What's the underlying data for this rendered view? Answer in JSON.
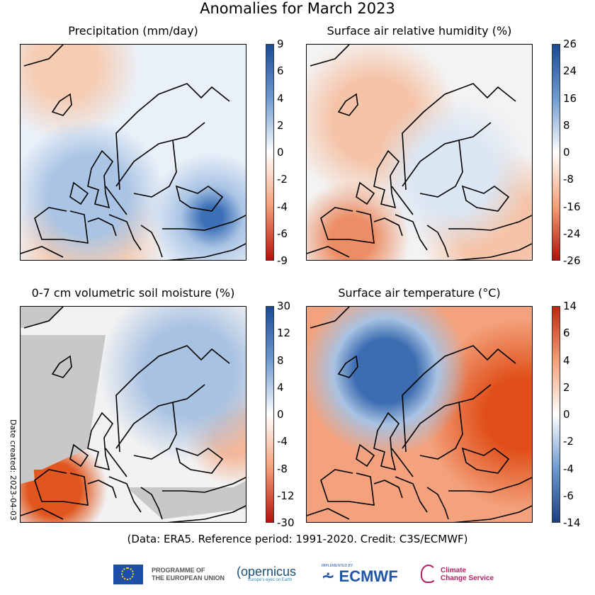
{
  "title": "Anomalies for March 2023",
  "credit": "(Data: ERA5.  Reference period: 1991-2020.  Credit: C3S/ECMWF)",
  "date_created": "Date created: 2023-04-03",
  "panels": [
    {
      "title": "Precipitation (mm/day)",
      "ticks": [
        "9",
        "6",
        "4",
        "2",
        "0",
        "-2",
        "-4",
        "-6",
        "-9"
      ],
      "colormap": "red-white-blue",
      "colors": [
        "#3b6fb6",
        "#a9c4e4",
        "#eaf0f8",
        "#f6ccb2",
        "#ea7a4c"
      ],
      "land_mask": false
    },
    {
      "title": "Surface air relative humidity (%)",
      "ticks": [
        "26",
        "24",
        "16",
        "8",
        "0",
        "-8",
        "-16",
        "-24",
        "-26"
      ],
      "colormap": "red-white-blue",
      "colors": [
        "#8fb1da",
        "#dbe6f3",
        "#f3f3f3",
        "#f5c4a8",
        "#ec8d65"
      ],
      "land_mask": false
    },
    {
      "title": "0-7 cm volumetric soil moisture (%)",
      "ticks": [
        "30",
        "12",
        "8",
        "4",
        "0",
        "-4",
        "-8",
        "-12",
        "-30"
      ],
      "colormap": "red-white-blue",
      "colors": [
        "#a8c2e2",
        "#dae5f2",
        "#f2f2f2",
        "#f3b89b",
        "#e0561e"
      ],
      "land_mask": true
    },
    {
      "title": "Surface air temperature (°C)",
      "ticks": [
        "14",
        "6",
        "4",
        "2",
        "0",
        "-2",
        "-4",
        "-6",
        "-14"
      ],
      "colormap": "blue-white-red",
      "colors": [
        "#3b6db0",
        "#a8c2e2",
        "#f4f4f4",
        "#f3a27d",
        "#e04f19"
      ],
      "land_mask": false
    }
  ],
  "logos": {
    "eu": "PROGRAMME OF THE EUROPEAN UNION",
    "eu_line1": "PROGRAMME OF",
    "eu_line2": "THE EUROPEAN UNION",
    "copernicus": "opernicus",
    "copernicus_tag": "Europe's eyes on Earth",
    "ecmwf_tag": "IMPLEMENTED BY",
    "ecmwf": "ECMWF",
    "c3s_line1": "Climate",
    "c3s_line2": "Change Service"
  }
}
